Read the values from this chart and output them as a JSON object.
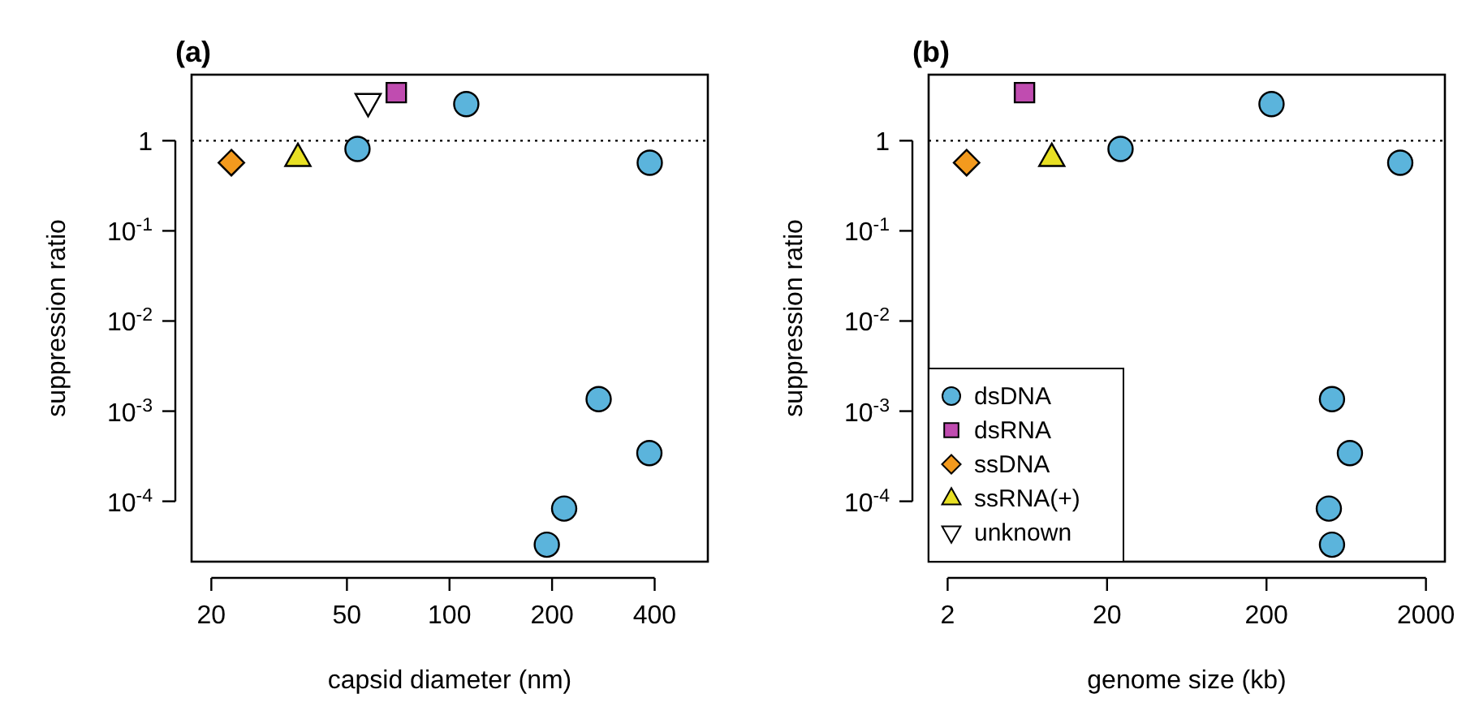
{
  "chart_data": [
    {
      "type": "scatter",
      "title": "(a)",
      "xlabel": "capsid diameter (nm)",
      "ylabel": "suppression ratio",
      "log": "xy",
      "grid": false,
      "legend": false,
      "xlim": [
        17.5,
        573
      ],
      "xticks": [
        20,
        50,
        100,
        200,
        400
      ],
      "ylim": [
        2.14e-05,
        5.4
      ],
      "yticks": [
        1,
        {
          "value": 0.1,
          "label": "10$^{-1}$"
        },
        {
          "value": 0.01,
          "label": "10$^{-2}$"
        },
        {
          "value": 0.001,
          "label": "10$^{-3}$"
        },
        {
          "value": 0.0001,
          "label": "10$^{-4}$"
        }
      ],
      "ref_lines": [
        {
          "axis": "y",
          "value": 1,
          "line_style": "dotted",
          "color": "#000000"
        }
      ],
      "series": [
        {
          "color": "#5bb4dc",
          "marker": "circle",
          "x": [
            53.7,
            112,
            387,
            274,
            386,
            217,
            193
          ],
          "values": [
            0.81,
            2.55,
            0.57,
            0.00136,
            0.000342,
            8.3e-05,
            3.3e-05
          ]
        },
        {
          "color": "#c04cb0",
          "marker": "square",
          "x": [
            69.8
          ],
          "values": [
            3.41
          ]
        },
        {
          "color": "#f39a1e",
          "marker": "diamond",
          "x": [
            22.9
          ],
          "values": [
            0.57
          ]
        },
        {
          "color": "#e8e024",
          "marker": "triangle",
          "x": [
            35.9
          ],
          "values": [
            0.65
          ]
        },
        {
          "color": "#ffffff",
          "marker": "triangle-down",
          "x": [
            57.7
          ],
          "values": [
            2.66
          ]
        }
      ]
    },
    {
      "type": "scatter",
      "title": "(b)",
      "xlabel": "genome size (kb)",
      "ylabel": "suppression ratio",
      "log": "xy",
      "grid": false,
      "legend": "bottom left",
      "xlim": [
        1.52,
        2630
      ],
      "xticks": [
        2,
        20,
        200,
        2000
      ],
      "ylim": [
        2.14e-05,
        5.4
      ],
      "yticks": [
        1,
        {
          "value": 0.1,
          "label": "10$^{-1}$"
        },
        {
          "value": 0.01,
          "label": "10$^{-2}$"
        },
        {
          "value": 0.001,
          "label": "10$^{-3}$"
        },
        {
          "value": 0.0001,
          "label": "10$^{-4}$"
        }
      ],
      "ref_lines": [
        {
          "axis": "y",
          "value": 1,
          "line_style": "dotted",
          "color": "#000000"
        }
      ],
      "series": [
        {
          "name": "dsDNA",
          "color": "#5bb4dc",
          "marker": "circle",
          "x": [
            24.3,
            215,
            1380,
            515,
            667,
            492,
            515
          ],
          "values": [
            0.81,
            2.55,
            0.57,
            0.00136,
            0.000342,
            8.3e-05,
            3.3e-05
          ]
        },
        {
          "name": "dsRNA",
          "color": "#c04cb0",
          "marker": "square",
          "x": [
            6.07
          ],
          "values": [
            3.41
          ]
        },
        {
          "name": "ssDNA",
          "color": "#f39a1e",
          "marker": "diamond",
          "x": [
            2.63
          ],
          "values": [
            0.57
          ]
        },
        {
          "name": "ssRNA(+)",
          "color": "#e8e024",
          "marker": "triangle",
          "x": [
            9.0
          ],
          "values": [
            0.65
          ]
        },
        {
          "name": "unknown",
          "color": "#ffffff",
          "marker": "triangle-down"
        }
      ]
    }
  ]
}
